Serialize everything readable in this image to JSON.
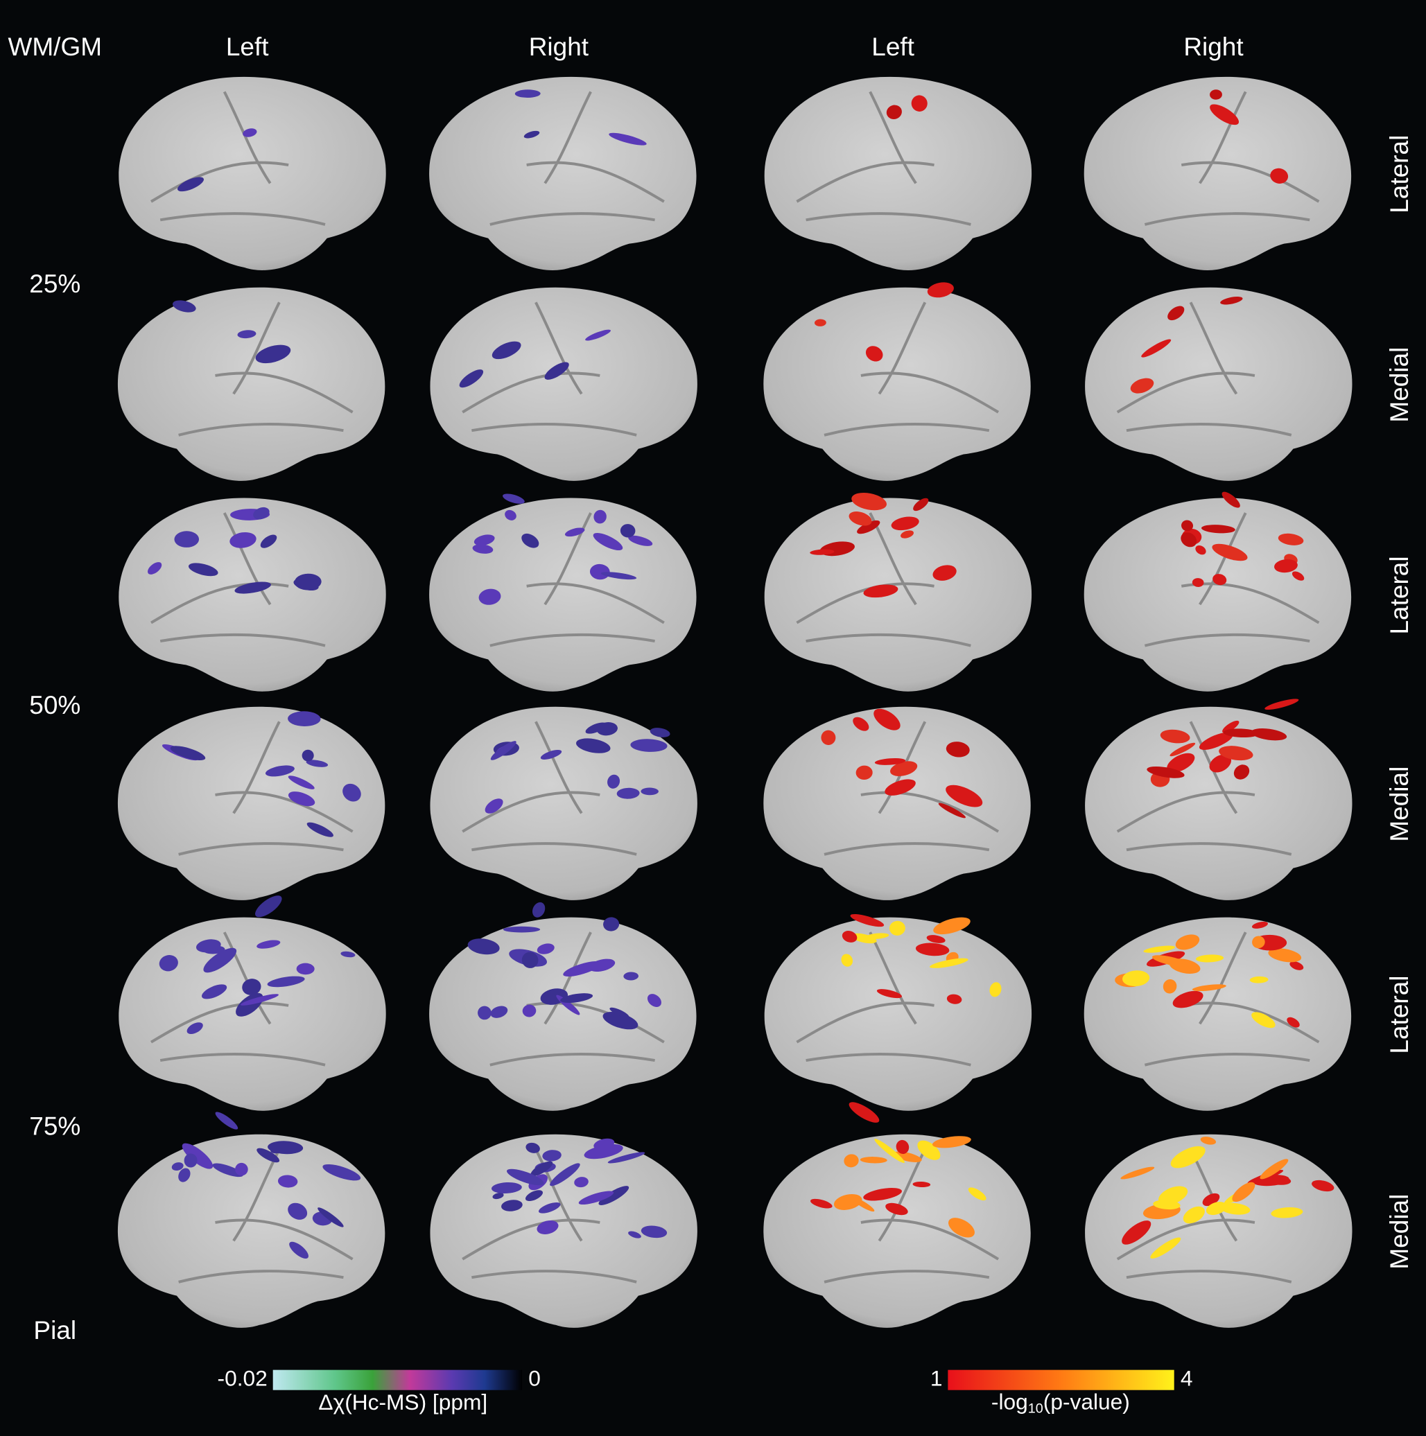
{
  "header": {
    "corner": "WM/GM",
    "columns": [
      "Left",
      "Right",
      "Left",
      "Right"
    ]
  },
  "depths": [
    "25%",
    "50%",
    "75%",
    "Pial"
  ],
  "views": [
    "Lateral",
    "Medial",
    "Lateral",
    "Medial",
    "Lateral",
    "Medial"
  ],
  "colorbars": [
    {
      "ticks": [
        -0.02,
        0
      ],
      "label": "Δχ(Hc-MS) [ppm]"
    },
    {
      "ticks": [
        1,
        4
      ],
      "label": {
        "prefix": "-log",
        "subscript": "10",
        "suffix": "(p-value)"
      }
    }
  ]
}
